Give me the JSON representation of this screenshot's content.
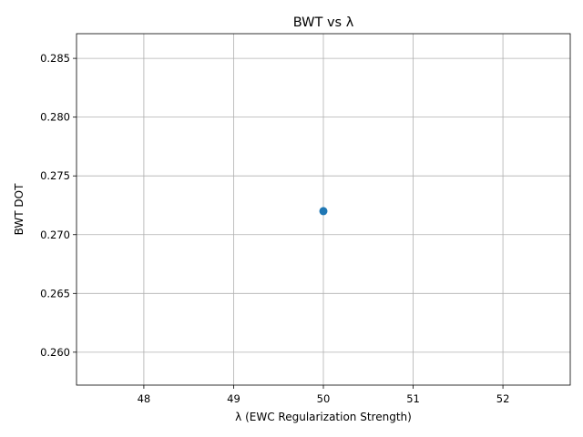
{
  "chart_data": {
    "type": "scatter",
    "title": "BWT vs λ",
    "xlabel": "λ (EWC Regularization Strength)",
    "ylabel": "BWT DOT",
    "xlim": [
      47.25,
      52.75
    ],
    "ylim": [
      0.2572,
      0.2871
    ],
    "xticks": [
      48,
      49,
      50,
      51,
      52
    ],
    "xtick_labels": [
      "48",
      "49",
      "50",
      "51",
      "52"
    ],
    "yticks": [
      0.26,
      0.265,
      0.27,
      0.275,
      0.28,
      0.285
    ],
    "ytick_labels": [
      "0.260",
      "0.265",
      "0.270",
      "0.275",
      "0.280",
      "0.285"
    ],
    "grid": true,
    "series": [
      {
        "x": [
          50
        ],
        "y": [
          0.272
        ],
        "color": "#1f77b4"
      }
    ]
  }
}
